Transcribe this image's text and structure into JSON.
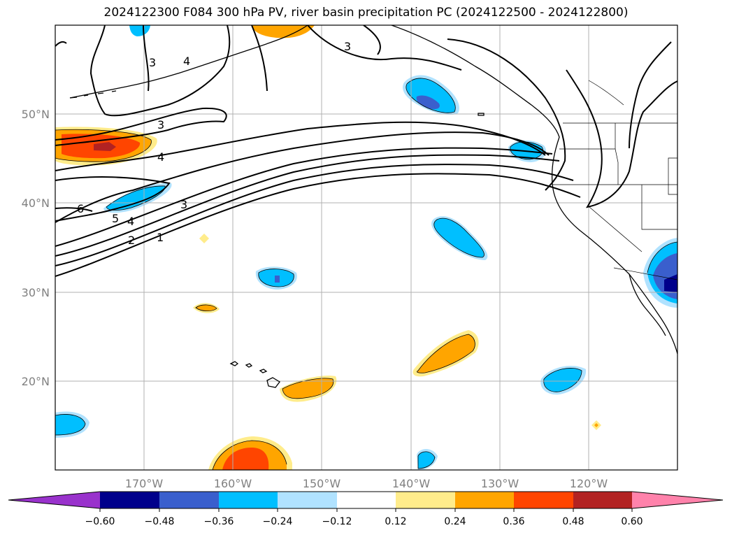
{
  "title": "2024122300 F084 300 hPa PV, river basin precipitation PC (2024122500 - 2024122800)",
  "map": {
    "lon_range": [
      -180,
      -110
    ],
    "lat_range": [
      10,
      60
    ],
    "gridlines": true,
    "lon_labels": [
      "170°W",
      "160°W",
      "150°W",
      "140°W",
      "130°W",
      "120°W"
    ],
    "lat_labels": [
      "50°N",
      "40°N",
      "30°N",
      "20°N"
    ],
    "pv_contour_labels": [
      "3",
      "4",
      "3",
      "3",
      "4",
      "6",
      "5",
      "4",
      "3",
      "2",
      "1"
    ]
  },
  "colorbar": {
    "tick_labels": [
      "−0.60",
      "−0.48",
      "−0.36",
      "−0.24",
      "−0.12",
      "0.12",
      "0.24",
      "0.36",
      "0.48",
      "0.60"
    ],
    "colors": [
      "#9932cc",
      "#00008b",
      "#3a5fcd",
      "#00bfff",
      "#b0e2ff",
      "#ffffff",
      "#ffec8b",
      "#ffa500",
      "#ff4500",
      "#b22222",
      "#ff82ab"
    ]
  },
  "colors": {
    "line": "#000000",
    "grid": "#b0b0b0",
    "tick_label": "#808080"
  }
}
